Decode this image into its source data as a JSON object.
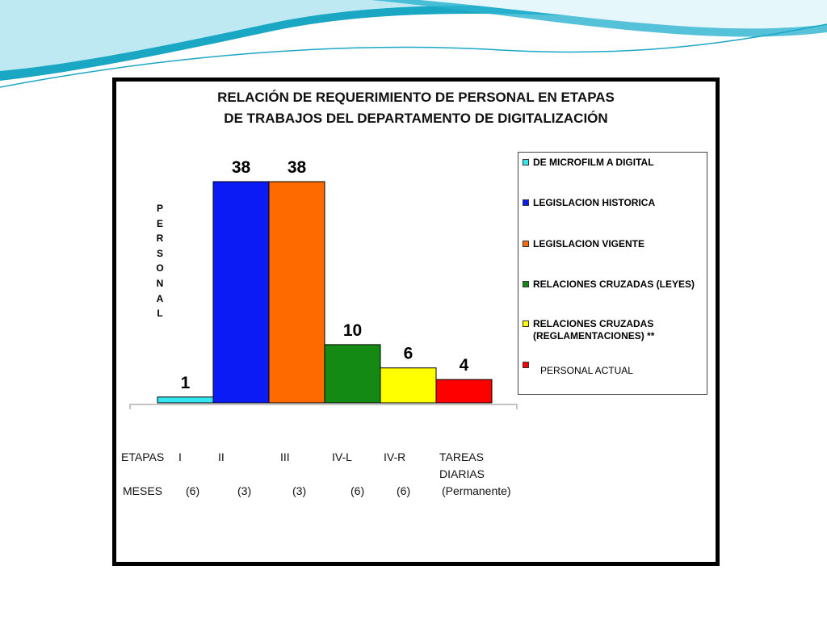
{
  "colors": {
    "wave_dark": "#1aa7c4",
    "wave_light": "#bfe9f2",
    "frame": "#000000"
  },
  "chart_data": {
    "type": "bar",
    "title_lines": [
      "RELACIÓN DE REQUERIMIENTO DE PERSONAL EN ETAPAS",
      "DE TRABAJOS DEL DEPARTAMENTO DE DIGITALIZACIÓN"
    ],
    "ylabel": "PERSONAL",
    "ylim": [
      0,
      38
    ],
    "grid": false,
    "legend_position": "right",
    "series": [
      {
        "name": "DE MICROFILM A DIGITAL",
        "value": 1,
        "color": "#33e6f0"
      },
      {
        "name": "LEGISLACION HISTORICA",
        "value": 38,
        "color": "#0a1bf5"
      },
      {
        "name": "LEGISLACION VIGENTE",
        "value": 38,
        "color": "#ff6a00"
      },
      {
        "name": "RELACIONES CRUZADAS (LEYES)",
        "value": 10,
        "color": "#138a13"
      },
      {
        "name_lines": [
          "RELACIONES CRUZADAS",
          "(REGLAMENTACIONES) **"
        ],
        "value": 6,
        "color": "#ffff00"
      },
      {
        "name": "PERSONAL ACTUAL",
        "value": 4,
        "color": "#ff0000"
      }
    ],
    "category_axis": {
      "etapas_label": "ETAPAS",
      "etapas": [
        "I",
        "II",
        "III",
        "IV-L",
        "IV-R",
        "TAREAS",
        "DIARIAS"
      ],
      "meses_label": "MESES",
      "meses": [
        "(6)",
        "(3)",
        "(3)",
        "(6)",
        "(6)",
        "(Permanente)"
      ]
    }
  }
}
